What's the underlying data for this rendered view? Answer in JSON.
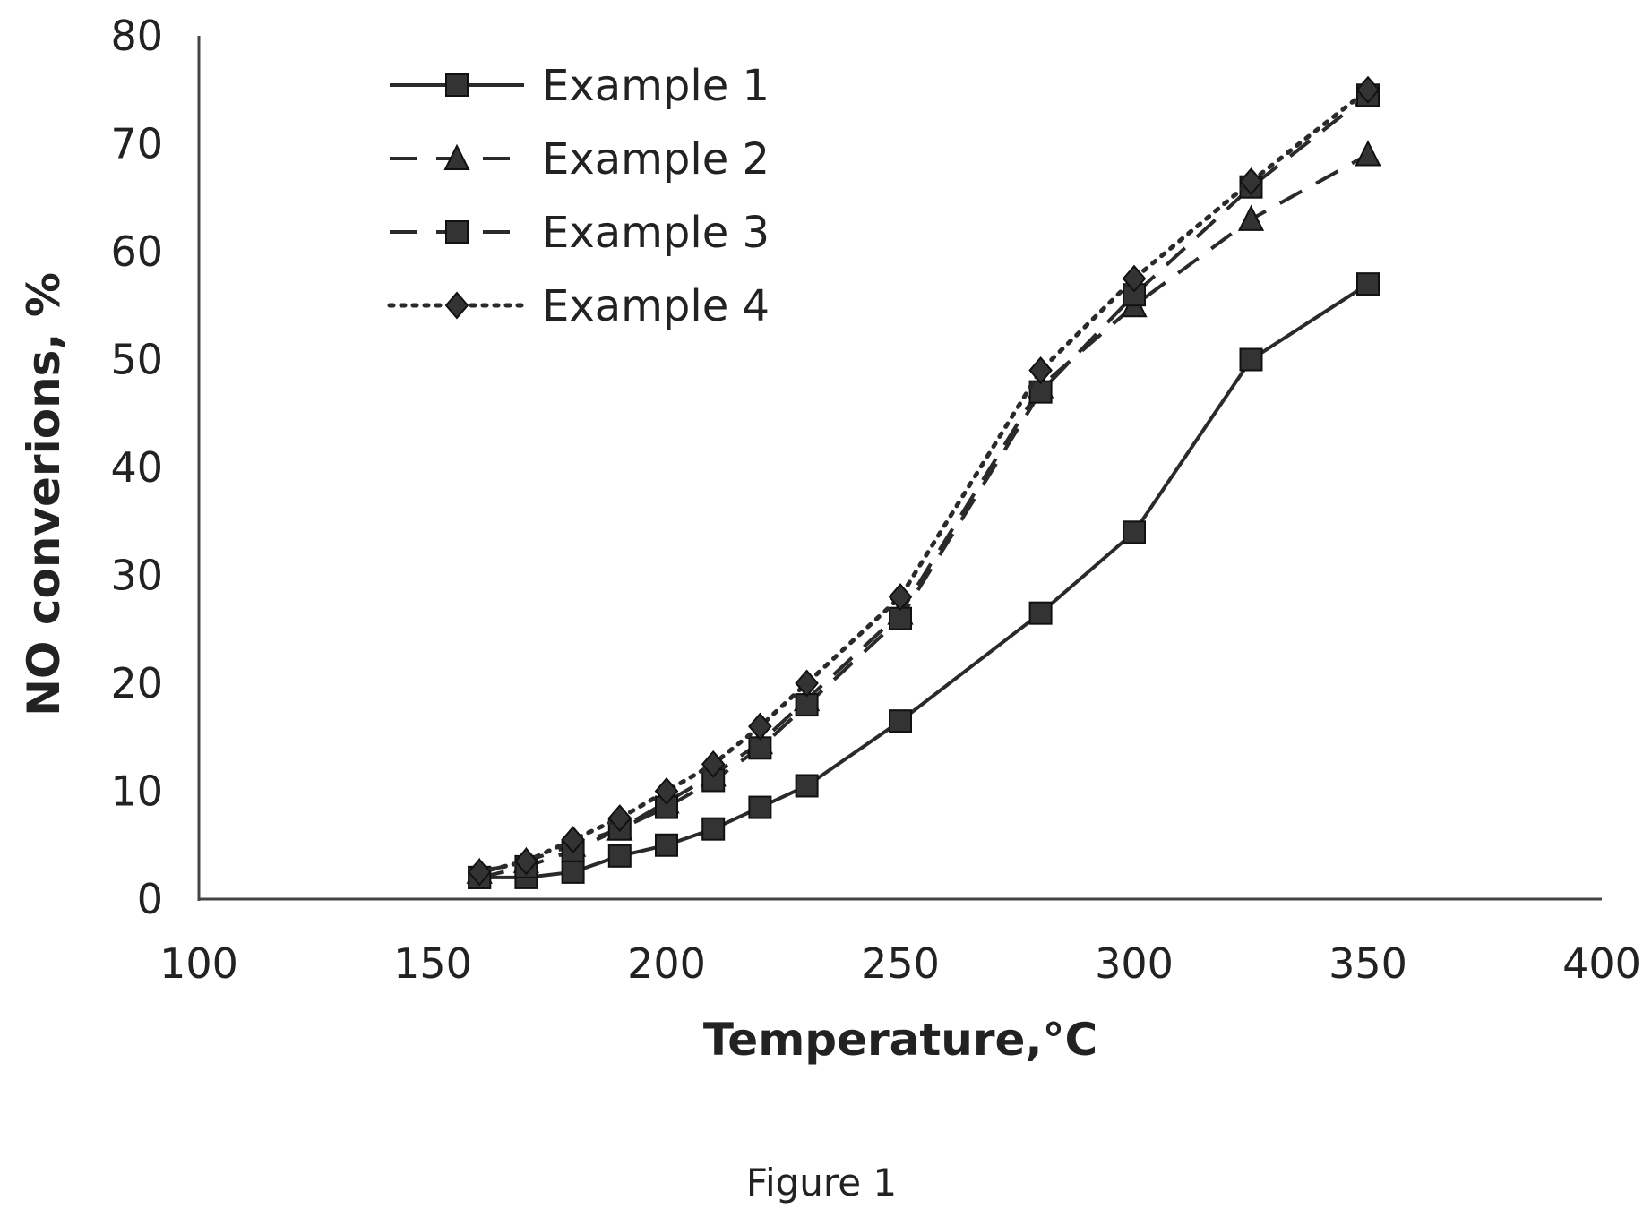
{
  "chart_data": {
    "type": "line",
    "xlabel": "Temperature,°C",
    "ylabel": "NO converions, %",
    "xlim": [
      100,
      400
    ],
    "ylim": [
      0,
      80
    ],
    "x_ticks": [
      100,
      150,
      200,
      250,
      300,
      350,
      400
    ],
    "y_ticks": [
      0,
      10,
      20,
      30,
      40,
      50,
      60,
      70,
      80
    ],
    "grid": false,
    "legend_position": "top-left",
    "series": [
      {
        "name": "Example 1",
        "line_style": "solid",
        "marker": "square",
        "x": [
          160,
          170,
          180,
          190,
          200,
          210,
          220,
          230,
          250,
          280,
          300,
          325,
          350
        ],
        "y": [
          2,
          2,
          2.5,
          4,
          5,
          6.5,
          8.5,
          10.5,
          16.5,
          26.5,
          34,
          50,
          57
        ]
      },
      {
        "name": "Example 2",
        "line_style": "dashed",
        "marker": "triangle",
        "x": [
          160,
          170,
          180,
          190,
          200,
          210,
          220,
          230,
          250,
          280,
          300,
          325,
          350
        ],
        "y": [
          2.5,
          3.5,
          5,
          6.5,
          9,
          11.5,
          14.5,
          18.5,
          26.5,
          47.5,
          55,
          63,
          69
        ]
      },
      {
        "name": "Example 3",
        "line_style": "dashed",
        "marker": "square",
        "x": [
          160,
          170,
          180,
          190,
          200,
          210,
          220,
          230,
          250,
          280,
          300,
          325,
          350
        ],
        "y": [
          2,
          3,
          4.5,
          6.5,
          8.5,
          11,
          14,
          18,
          26,
          47,
          56,
          66,
          74.5
        ]
      },
      {
        "name": "Example 4",
        "line_style": "dotted",
        "marker": "diamond",
        "x": [
          160,
          170,
          180,
          190,
          200,
          210,
          220,
          230,
          250,
          280,
          300,
          325,
          350
        ],
        "y": [
          2.5,
          3.5,
          5.5,
          7.5,
          10,
          12.5,
          16,
          20,
          28,
          49,
          57.5,
          66.5,
          75
        ]
      }
    ]
  },
  "caption": "Figure 1"
}
